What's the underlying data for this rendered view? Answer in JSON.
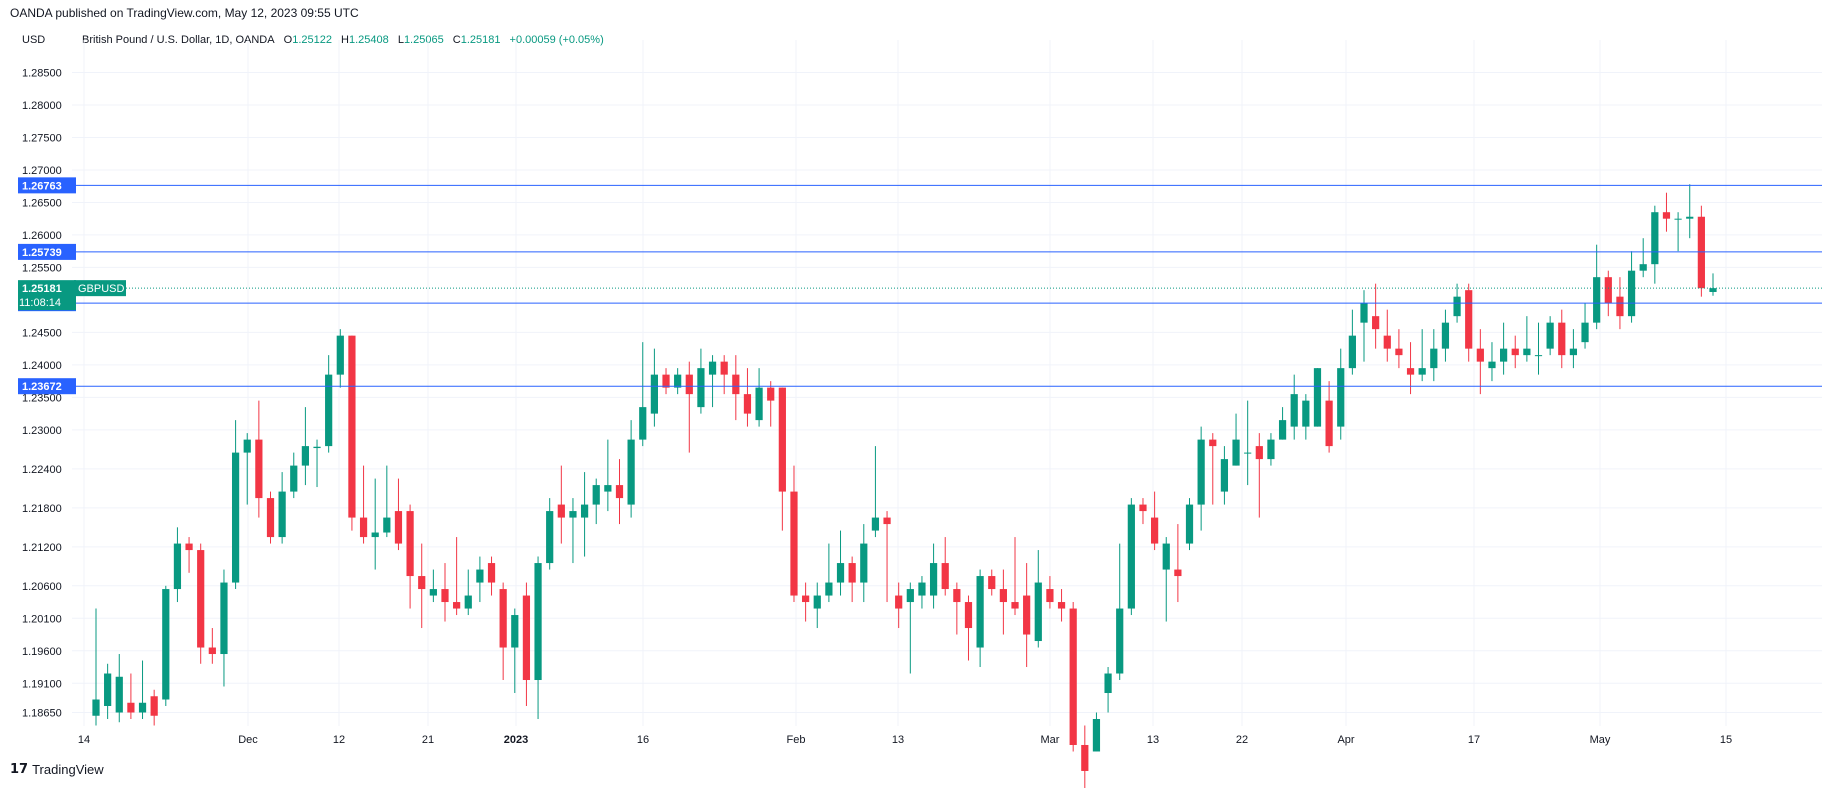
{
  "header": {
    "published": "OANDA published on TradingView.com, May 12, 2023 09:55 UTC"
  },
  "currency": "USD",
  "legend": {
    "symbol": "British Pound / U.S. Dollar, 1D, OANDA",
    "o_label": "O",
    "o_value": "1.25122",
    "h_label": "H",
    "h_value": "1.25408",
    "l_label": "L",
    "l_value": "1.25065",
    "c_label": "C",
    "c_value": "1.25181",
    "change": "+0.00059 (+0.05%)"
  },
  "footer": {
    "logo_mark": "17",
    "logo_text": "TradingView"
  },
  "colors": {
    "up": "#089981",
    "down": "#f23645",
    "line": "#2962ff",
    "grid": "#f0f3fa",
    "text": "#131722"
  },
  "chart_data": {
    "type": "candlestick",
    "title": "British Pound / U.S. Dollar, 1D, OANDA",
    "y_axis_ticks": [
      "1.28500",
      "1.28000",
      "1.27500",
      "1.27000",
      "1.26500",
      "1.26000",
      "1.25500",
      "1.24500",
      "1.24000",
      "1.23500",
      "1.23000",
      "1.22400",
      "1.21800",
      "1.21200",
      "1.20600",
      "1.20100",
      "1.19600",
      "1.19100",
      "1.18650"
    ],
    "x_axis_ticks": [
      {
        "label": "14",
        "bold": false
      },
      {
        "label": "Dec",
        "bold": false
      },
      {
        "label": "12",
        "bold": false
      },
      {
        "label": "21",
        "bold": false
      },
      {
        "label": "2023",
        "bold": true
      },
      {
        "label": "16",
        "bold": false
      },
      {
        "label": "Feb",
        "bold": false
      },
      {
        "label": "13",
        "bold": false
      },
      {
        "label": "Mar",
        "bold": false
      },
      {
        "label": "13",
        "bold": false
      },
      {
        "label": "22",
        "bold": false
      },
      {
        "label": "Apr",
        "bold": false
      },
      {
        "label": "17",
        "bold": false
      },
      {
        "label": "May",
        "bold": false
      },
      {
        "label": "15",
        "bold": false
      }
    ],
    "horizontal_lines": [
      {
        "value": "1.26763",
        "price": 1.26763
      },
      {
        "value": "1.25739",
        "price": 1.25739
      },
      {
        "value": "1.24950",
        "price": 1.2495
      },
      {
        "value": "1.23672",
        "price": 1.23672
      }
    ],
    "last_price": {
      "value": "1.25181",
      "price": 1.25181,
      "countdown": "11:08:14",
      "symbol": "GBPUSD"
    },
    "candles": [
      [
        1.186,
        1.1885,
        1.2025,
        1.1845
      ],
      [
        1.1875,
        1.1925,
        1.194,
        1.1855
      ],
      [
        1.1865,
        1.192,
        1.1955,
        1.185
      ],
      [
        1.188,
        1.1865,
        1.1925,
        1.1855
      ],
      [
        1.1865,
        1.188,
        1.1945,
        1.1855
      ],
      [
        1.189,
        1.186,
        1.19,
        1.1845
      ],
      [
        1.1885,
        1.2055,
        1.206,
        1.1875
      ],
      [
        1.2055,
        1.2125,
        1.215,
        1.2035
      ],
      [
        1.2125,
        1.2115,
        1.2135,
        1.208
      ],
      [
        1.2115,
        1.1965,
        1.2125,
        1.194
      ],
      [
        1.1965,
        1.1955,
        1.1995,
        1.194
      ],
      [
        1.1955,
        1.2065,
        1.2085,
        1.1905
      ],
      [
        1.2065,
        1.2265,
        1.2315,
        1.2055
      ],
      [
        1.2265,
        1.2285,
        1.2295,
        1.2185
      ],
      [
        1.2285,
        1.2195,
        1.2345,
        1.2165
      ],
      [
        1.2195,
        1.2135,
        1.2205,
        1.2125
      ],
      [
        1.2135,
        1.2205,
        1.2235,
        1.2125
      ],
      [
        1.2205,
        1.2245,
        1.2265,
        1.2195
      ],
      [
        1.2245,
        1.2275,
        1.2335,
        1.2215
      ],
      [
        1.2272,
        1.2274,
        1.2285,
        1.2212
      ],
      [
        1.2275,
        1.2385,
        1.2415,
        1.2265
      ],
      [
        1.2385,
        1.2445,
        1.2455,
        1.2365
      ],
      [
        1.2445,
        1.2165,
        1.2445,
        1.2145
      ],
      [
        1.2165,
        1.2135,
        1.2245,
        1.2125
      ],
      [
        1.2135,
        1.2142,
        1.2225,
        1.2085
      ],
      [
        1.2142,
        1.2165,
        1.2245,
        1.2135
      ],
      [
        1.2175,
        1.2125,
        1.2225,
        1.2115
      ],
      [
        1.2175,
        1.2075,
        1.2185,
        1.2025
      ],
      [
        1.2075,
        1.2055,
        1.2125,
        1.1995
      ],
      [
        1.2045,
        1.2055,
        1.2085,
        1.2035
      ],
      [
        1.2055,
        1.2035,
        1.2095,
        1.2005
      ],
      [
        1.2035,
        1.2025,
        1.2135,
        1.2015
      ],
      [
        1.2025,
        1.2045,
        1.2085,
        1.2015
      ],
      [
        1.2065,
        1.2085,
        1.2105,
        1.2035
      ],
      [
        1.2095,
        1.2065,
        1.2105,
        1.2045
      ],
      [
        1.2055,
        1.1965,
        1.2065,
        1.1915
      ],
      [
        1.1965,
        1.2015,
        1.2025,
        1.1895
      ],
      [
        1.2045,
        1.1915,
        1.2065,
        1.1875
      ],
      [
        1.1915,
        1.2095,
        1.2105,
        1.1855
      ],
      [
        1.2095,
        1.2175,
        1.2195,
        1.2085
      ],
      [
        1.2185,
        1.2165,
        1.2245,
        1.2125
      ],
      [
        1.2165,
        1.2175,
        1.2195,
        1.2095
      ],
      [
        1.2165,
        1.2185,
        1.2235,
        1.2105
      ],
      [
        1.2185,
        1.2215,
        1.2225,
        1.2155
      ],
      [
        1.2205,
        1.2215,
        1.2285,
        1.2175
      ],
      [
        1.2215,
        1.2195,
        1.2255,
        1.2155
      ],
      [
        1.2185,
        1.2285,
        1.2315,
        1.2165
      ],
      [
        1.2285,
        1.2335,
        1.2435,
        1.2275
      ],
      [
        1.2325,
        1.2385,
        1.2425,
        1.2305
      ],
      [
        1.2385,
        1.2365,
        1.2395,
        1.2355
      ],
      [
        1.2365,
        1.2385,
        1.2395,
        1.2355
      ],
      [
        1.2385,
        1.2355,
        1.2405,
        1.2265
      ],
      [
        1.2335,
        1.2395,
        1.2425,
        1.2325
      ],
      [
        1.2385,
        1.2405,
        1.2415,
        1.2335
      ],
      [
        1.2405,
        1.2385,
        1.2415,
        1.2355
      ],
      [
        1.2385,
        1.2355,
        1.2415,
        1.2315
      ],
      [
        1.2355,
        1.2325,
        1.2395,
        1.2305
      ],
      [
        1.2315,
        1.2365,
        1.2395,
        1.2305
      ],
      [
        1.2365,
        1.2345,
        1.2375,
        1.2305
      ],
      [
        1.2365,
        1.2205,
        1.2365,
        1.2145
      ],
      [
        1.2205,
        1.2045,
        1.2245,
        1.2035
      ],
      [
        1.2045,
        1.2035,
        1.2065,
        1.2005
      ],
      [
        1.2025,
        1.2045,
        1.2065,
        1.1995
      ],
      [
        1.2045,
        1.2065,
        1.2125,
        1.2035
      ],
      [
        1.2065,
        1.2095,
        1.2145,
        1.2045
      ],
      [
        1.2095,
        1.2065,
        1.2105,
        1.2035
      ],
      [
        1.2065,
        1.2125,
        1.2155,
        1.2035
      ],
      [
        1.2145,
        1.2165,
        1.2275,
        1.2135
      ],
      [
        1.2165,
        1.2155,
        1.2175,
        1.2035
      ],
      [
        1.2045,
        1.2025,
        1.2065,
        1.1995
      ],
      [
        1.2035,
        1.2055,
        1.2065,
        1.1925
      ],
      [
        1.2045,
        1.2065,
        1.2075,
        1.2025
      ],
      [
        1.2045,
        1.2095,
        1.2125,
        1.2025
      ],
      [
        1.2095,
        1.2055,
        1.2135,
        1.2045
      ],
      [
        1.2055,
        1.2035,
        1.2065,
        1.1985
      ],
      [
        1.2035,
        1.1995,
        1.2045,
        1.1945
      ],
      [
        1.1965,
        1.2075,
        1.2085,
        1.1935
      ],
      [
        1.2075,
        1.2055,
        1.2085,
        1.2045
      ],
      [
        1.2055,
        1.2035,
        1.2085,
        1.1985
      ],
      [
        1.2035,
        1.2025,
        1.2135,
        1.2015
      ],
      [
        1.2045,
        1.1985,
        1.2095,
        1.1935
      ],
      [
        1.1975,
        1.2065,
        1.2115,
        1.1965
      ],
      [
        1.2055,
        1.2035,
        1.2075,
        1.2025
      ],
      [
        1.2035,
        1.2025,
        1.2055,
        1.2005
      ],
      [
        1.2025,
        1.1815,
        1.2035,
        1.1805
      ],
      [
        1.1815,
        1.1775,
        1.1845,
        1.1735
      ],
      [
        1.1805,
        1.1855,
        1.1865,
        1.1805
      ],
      [
        1.1895,
        1.1925,
        1.1935,
        1.1865
      ],
      [
        1.1925,
        1.2025,
        1.2125,
        1.1915
      ],
      [
        1.2025,
        1.2185,
        1.2195,
        1.2015
      ],
      [
        1.2185,
        1.2175,
        1.2195,
        1.2155
      ],
      [
        1.2165,
        1.2125,
        1.2205,
        1.2115
      ],
      [
        1.2085,
        1.2125,
        1.2135,
        1.2005
      ],
      [
        1.2085,
        1.2075,
        1.2155,
        1.2035
      ],
      [
        1.2125,
        1.2185,
        1.2195,
        1.2115
      ],
      [
        1.2185,
        1.2285,
        1.2305,
        1.2145
      ],
      [
        1.2285,
        1.2275,
        1.2295,
        1.2185
      ],
      [
        1.2205,
        1.2255,
        1.2275,
        1.2185
      ],
      [
        1.2245,
        1.2285,
        1.2325,
        1.2245
      ],
      [
        1.2265,
        1.2265,
        1.2345,
        1.2215
      ],
      [
        1.2275,
        1.2255,
        1.2295,
        1.2165
      ],
      [
        1.2255,
        1.2285,
        1.2295,
        1.2245
      ],
      [
        1.2285,
        1.2315,
        1.2335,
        1.2285
      ],
      [
        1.2305,
        1.2355,
        1.2385,
        1.2285
      ],
      [
        1.2305,
        1.2345,
        1.2355,
        1.2285
      ],
      [
        1.2305,
        1.2395,
        1.2395,
        1.2305
      ],
      [
        1.2345,
        1.2275,
        1.2375,
        1.2265
      ],
      [
        1.2305,
        1.2395,
        1.2425,
        1.2285
      ],
      [
        1.2395,
        1.2445,
        1.2485,
        1.2385
      ],
      [
        1.2465,
        1.2495,
        1.2515,
        1.2405
      ],
      [
        1.2475,
        1.2455,
        1.2525,
        1.2425
      ],
      [
        1.2445,
        1.2425,
        1.2485,
        1.2405
      ],
      [
        1.2425,
        1.2415,
        1.2455,
        1.2395
      ],
      [
        1.2395,
        1.2385,
        1.2435,
        1.2355
      ],
      [
        1.2385,
        1.2395,
        1.2455,
        1.2375
      ],
      [
        1.2395,
        1.2425,
        1.2455,
        1.2375
      ],
      [
        1.2425,
        1.2465,
        1.2485,
        1.2405
      ],
      [
        1.2475,
        1.2505,
        1.2525,
        1.2465
      ],
      [
        1.2515,
        1.2425,
        1.2525,
        1.2405
      ],
      [
        1.2425,
        1.2405,
        1.2455,
        1.2355
      ],
      [
        1.2395,
        1.2405,
        1.2435,
        1.2375
      ],
      [
        1.2405,
        1.2425,
        1.2465,
        1.2385
      ],
      [
        1.2425,
        1.2415,
        1.2445,
        1.2395
      ],
      [
        1.2415,
        1.2425,
        1.2475,
        1.2405
      ],
      [
        1.2415,
        1.2415,
        1.2465,
        1.2385
      ],
      [
        1.2425,
        1.2465,
        1.2475,
        1.2415
      ],
      [
        1.2465,
        1.2415,
        1.2485,
        1.2395
      ],
      [
        1.2415,
        1.2425,
        1.2455,
        1.2395
      ],
      [
        1.2435,
        1.2465,
        1.2495,
        1.2425
      ],
      [
        1.2465,
        1.2535,
        1.2585,
        1.2455
      ],
      [
        1.2535,
        1.2495,
        1.2545,
        1.2475
      ],
      [
        1.2505,
        1.2475,
        1.2535,
        1.2455
      ],
      [
        1.2475,
        1.2545,
        1.2575,
        1.2465
      ],
      [
        1.2545,
        1.2555,
        1.2595,
        1.2535
      ],
      [
        1.2555,
        1.2635,
        1.2645,
        1.2525
      ],
      [
        1.2635,
        1.2625,
        1.2665,
        1.2605
      ],
      [
        1.2625,
        1.2625,
        1.2635,
        1.2575
      ],
      [
        1.2625,
        1.2628,
        1.2678,
        1.2595
      ],
      [
        1.2628,
        1.2518,
        1.2645,
        1.2505
      ],
      [
        1.25122,
        1.25181,
        1.25408,
        1.25065
      ]
    ]
  }
}
